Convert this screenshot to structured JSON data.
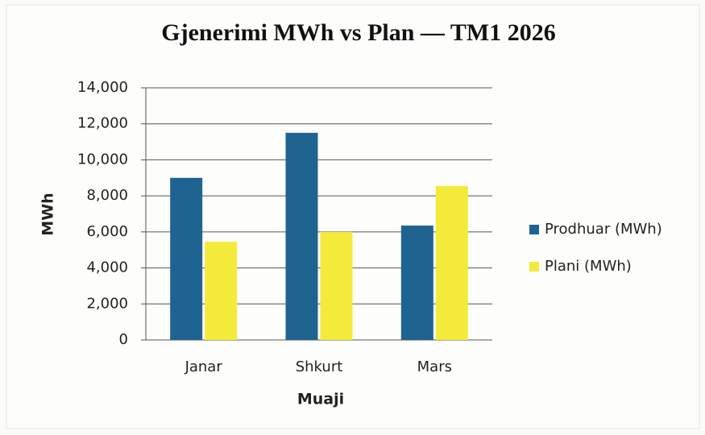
{
  "chart_data": {
    "type": "bar",
    "title": "Gjenerimi MWh vs Plan — TM1 2026",
    "x_label": "Muaji",
    "y_label": "MWh",
    "categories": [
      "Janar",
      "Shkurt",
      "Mars"
    ],
    "series": [
      {
        "name": "Prodhuar (MWh)",
        "color": "#1f6391",
        "values": [
          9000,
          11500,
          6350
        ]
      },
      {
        "name": "Plani (MWh)",
        "color": "#f4ea3a",
        "values": [
          5450,
          6000,
          8550
        ]
      }
    ],
    "ylim": [
      0,
      14000
    ],
    "yticks": [
      0,
      {
        "value": 2000,
        "label": "2,000"
      },
      {
        "value": 4000,
        "label": "4,000"
      },
      {
        "value": 6000,
        "label": "6,000"
      },
      {
        "value": 8000,
        "label": "8,000"
      },
      {
        "value": 10000,
        "label": "10,000"
      },
      {
        "value": 12000,
        "label": "12,000"
      },
      {
        "value": 14000,
        "label": "14,000"
      }
    ],
    "grid": true,
    "legend": "right"
  }
}
